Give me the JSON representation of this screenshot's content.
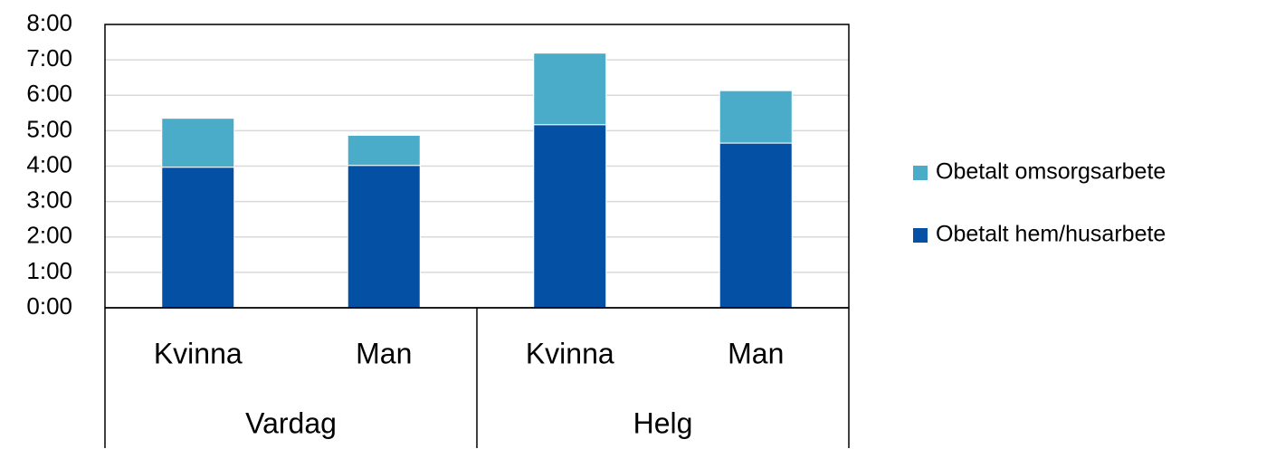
{
  "chart_data": {
    "type": "bar",
    "stacked": true,
    "groups": [
      {
        "label": "Vardag",
        "categories": [
          "Kvinna",
          "Man"
        ]
      },
      {
        "label": "Helg",
        "categories": [
          "Kvinna",
          "Man"
        ]
      }
    ],
    "series": [
      {
        "name": "Obetalt hem/husarbete",
        "color": "#0450a5",
        "values": [
          3.97,
          4.02,
          5.17,
          4.65
        ]
      },
      {
        "name": "Obetalt omsorgsarbete",
        "color": "#4bacca",
        "values": [
          1.38,
          0.85,
          2.02,
          1.48
        ]
      }
    ],
    "ylim": [
      0,
      8
    ],
    "yticks": [
      {
        "value": 0,
        "label": "0:00"
      },
      {
        "value": 1,
        "label": "1:00"
      },
      {
        "value": 2,
        "label": "2:00"
      },
      {
        "value": 3,
        "label": "3:00"
      },
      {
        "value": 4,
        "label": "4:00"
      },
      {
        "value": 5,
        "label": "5:00"
      },
      {
        "value": 6,
        "label": "6:00"
      },
      {
        "value": 7,
        "label": "7:00"
      },
      {
        "value": 8,
        "label": "8:00"
      }
    ],
    "grid": true,
    "legend": "right"
  }
}
